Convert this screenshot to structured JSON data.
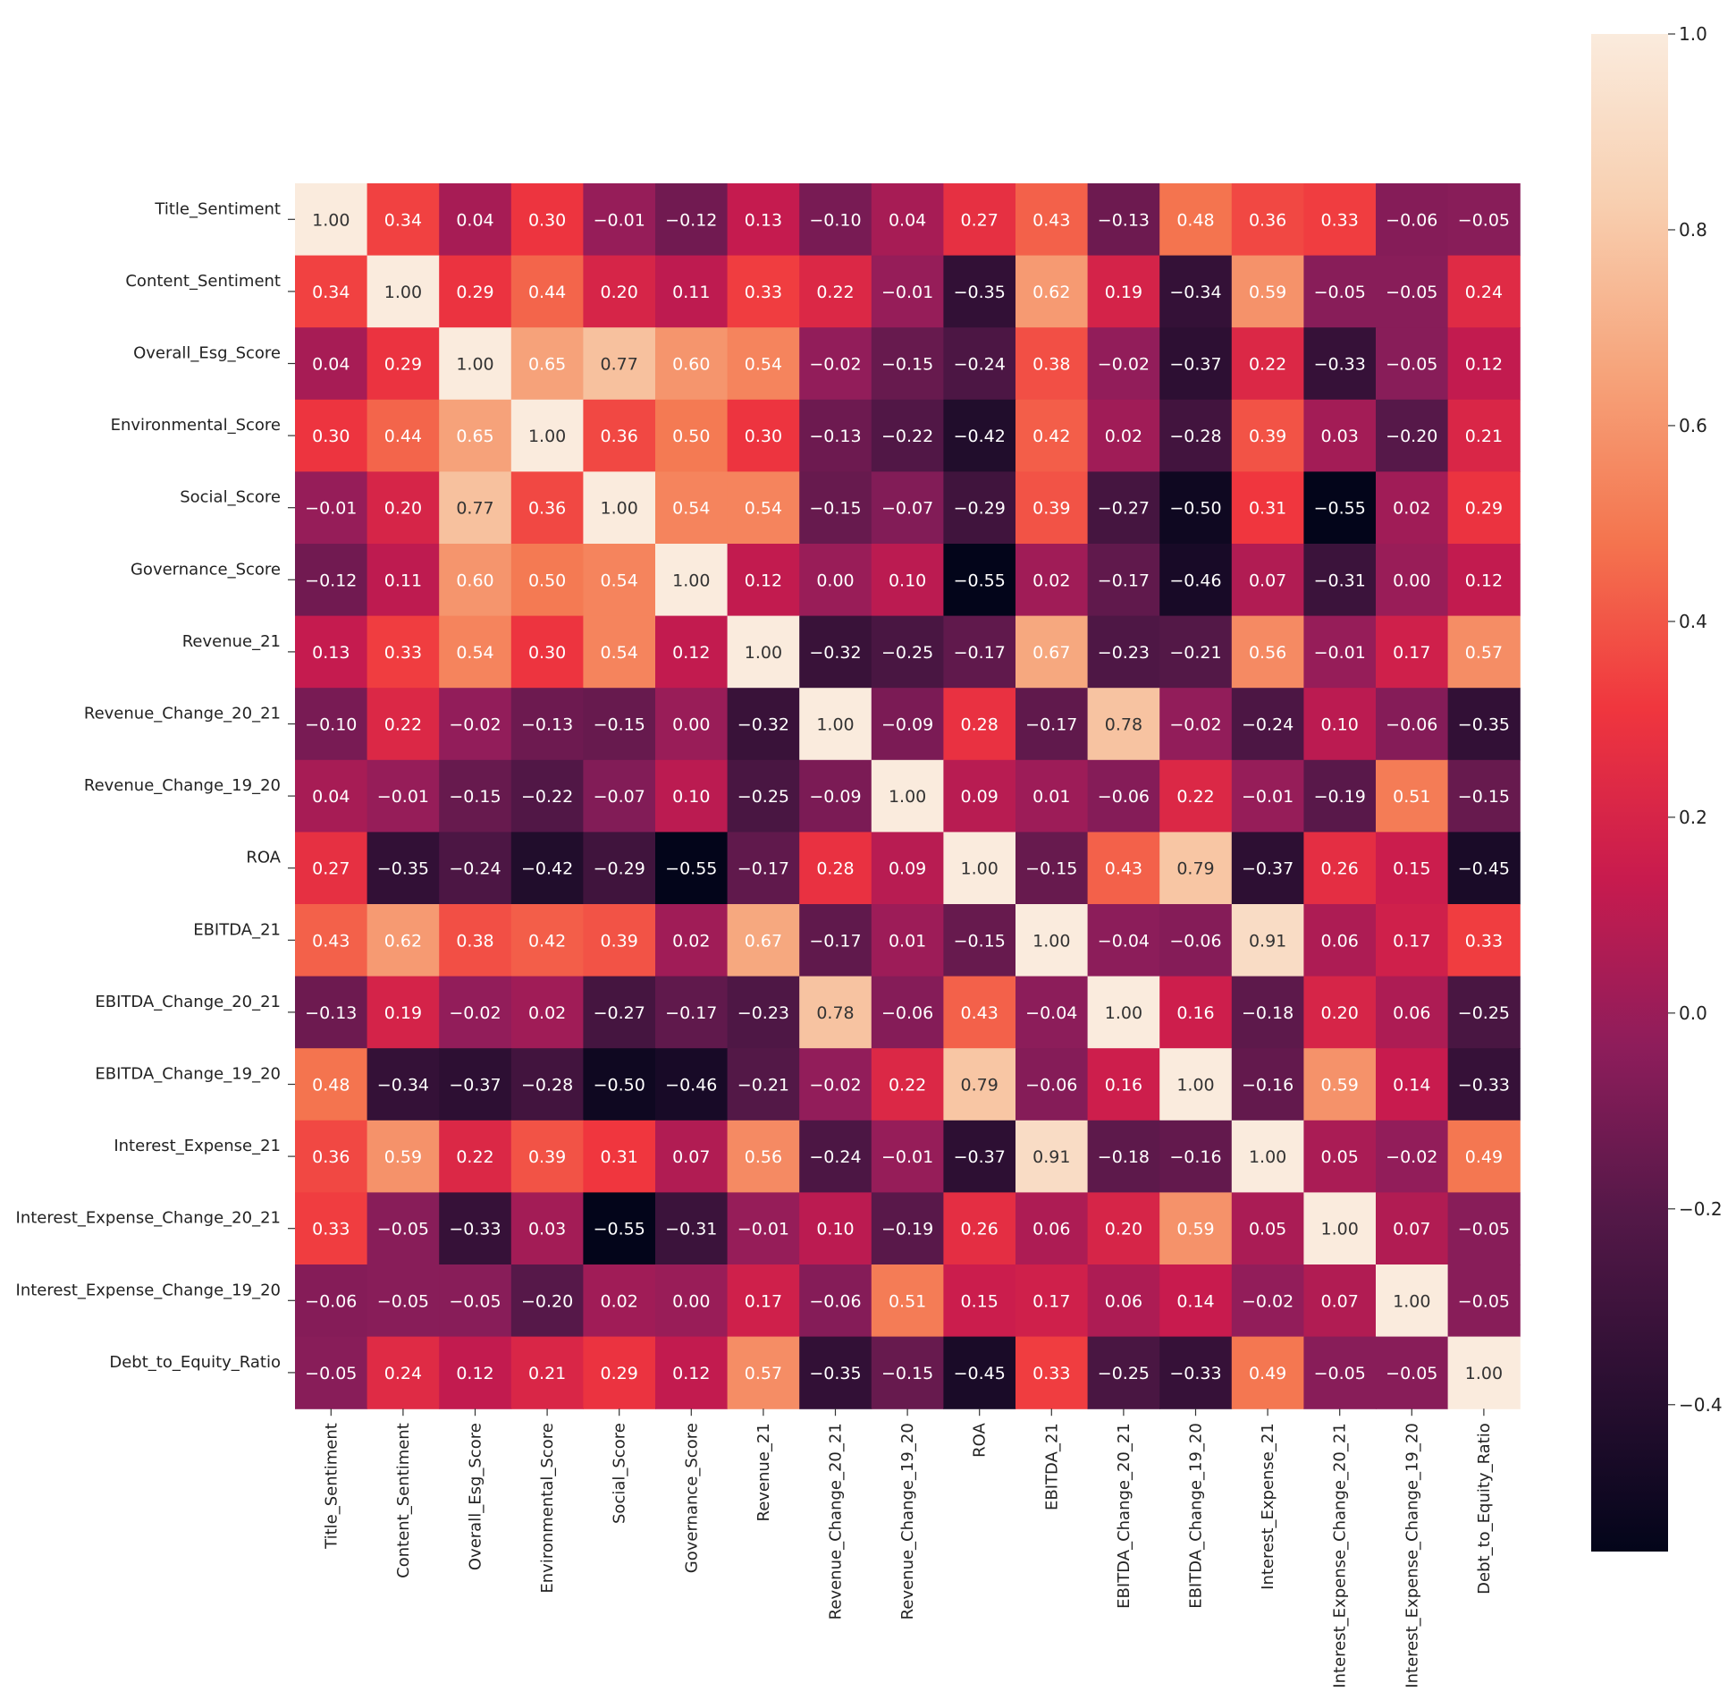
{
  "chart_data": {
    "type": "heatmap",
    "title": "",
    "variables": [
      "Title_Sentiment",
      "Content_Sentiment",
      "Overall_Esg_Score",
      "Environmental_Score",
      "Social_Score",
      "Governance_Score",
      "Revenue_21",
      "Revenue_Change_20_21",
      "Revenue_Change_19_20",
      "ROA",
      "EBITDA_21",
      "EBITDA_Change_20_21",
      "EBITDA_Change_19_20",
      "Interest_Expense_21",
      "Interest_Expense_Change_20_21",
      "Interest_Expense_Change_19_20",
      "Debt_to_Equity_Ratio"
    ],
    "values": [
      [
        1.0,
        0.34,
        0.04,
        0.3,
        -0.01,
        -0.12,
        0.13,
        -0.1,
        0.04,
        0.27,
        0.43,
        -0.13,
        0.48,
        0.36,
        0.33,
        -0.06,
        -0.05
      ],
      [
        0.34,
        1.0,
        0.29,
        0.44,
        0.2,
        0.11,
        0.33,
        0.22,
        -0.01,
        -0.35,
        0.62,
        0.19,
        -0.34,
        0.59,
        -0.05,
        -0.05,
        0.24
      ],
      [
        0.04,
        0.29,
        1.0,
        0.65,
        0.77,
        0.6,
        0.54,
        -0.02,
        -0.15,
        -0.24,
        0.38,
        -0.02,
        -0.37,
        0.22,
        -0.33,
        -0.05,
        0.12
      ],
      [
        0.3,
        0.44,
        0.65,
        1.0,
        0.36,
        0.5,
        0.3,
        -0.13,
        -0.22,
        -0.42,
        0.42,
        0.02,
        -0.28,
        0.39,
        0.03,
        -0.2,
        0.21
      ],
      [
        -0.01,
        0.2,
        0.77,
        0.36,
        1.0,
        0.54,
        0.54,
        -0.15,
        -0.07,
        -0.29,
        0.39,
        -0.27,
        -0.5,
        0.31,
        -0.55,
        0.02,
        0.29
      ],
      [
        -0.12,
        0.11,
        0.6,
        0.5,
        0.54,
        1.0,
        0.12,
        0.0,
        0.1,
        -0.55,
        0.02,
        -0.17,
        -0.46,
        0.07,
        -0.31,
        0.0,
        0.12
      ],
      [
        0.13,
        0.33,
        0.54,
        0.3,
        0.54,
        0.12,
        1.0,
        -0.32,
        -0.25,
        -0.17,
        0.67,
        -0.23,
        -0.21,
        0.56,
        -0.01,
        0.17,
        0.57
      ],
      [
        -0.1,
        0.22,
        -0.02,
        -0.13,
        -0.15,
        0.0,
        -0.32,
        1.0,
        -0.09,
        0.28,
        -0.17,
        0.78,
        -0.02,
        -0.24,
        0.1,
        -0.06,
        -0.35
      ],
      [
        0.04,
        -0.01,
        -0.15,
        -0.22,
        -0.07,
        0.1,
        -0.25,
        -0.09,
        1.0,
        0.09,
        0.01,
        -0.06,
        0.22,
        -0.01,
        -0.19,
        0.51,
        -0.15
      ],
      [
        0.27,
        -0.35,
        -0.24,
        -0.42,
        -0.29,
        -0.55,
        -0.17,
        0.28,
        0.09,
        1.0,
        -0.15,
        0.43,
        0.79,
        -0.37,
        0.26,
        0.15,
        -0.45
      ],
      [
        0.43,
        0.62,
        0.38,
        0.42,
        0.39,
        0.02,
        0.67,
        -0.17,
        0.01,
        -0.15,
        1.0,
        -0.04,
        -0.06,
        0.91,
        0.06,
        0.17,
        0.33
      ],
      [
        -0.13,
        0.19,
        -0.02,
        0.02,
        -0.27,
        -0.17,
        -0.23,
        0.78,
        -0.06,
        0.43,
        -0.04,
        1.0,
        0.16,
        -0.18,
        0.2,
        0.06,
        -0.25
      ],
      [
        0.48,
        -0.34,
        -0.37,
        -0.28,
        -0.5,
        -0.46,
        -0.21,
        -0.02,
        0.22,
        0.79,
        -0.06,
        0.16,
        1.0,
        -0.16,
        0.59,
        0.14,
        -0.33
      ],
      [
        0.36,
        0.59,
        0.22,
        0.39,
        0.31,
        0.07,
        0.56,
        -0.24,
        -0.01,
        -0.37,
        0.91,
        -0.18,
        -0.16,
        1.0,
        0.05,
        -0.02,
        0.49
      ],
      [
        0.33,
        -0.05,
        -0.33,
        0.03,
        -0.55,
        -0.31,
        -0.01,
        0.1,
        -0.19,
        0.26,
        0.06,
        0.2,
        0.59,
        0.05,
        1.0,
        0.07,
        -0.05
      ],
      [
        -0.06,
        -0.05,
        -0.05,
        -0.2,
        0.02,
        0.0,
        0.17,
        -0.06,
        0.51,
        0.15,
        0.17,
        0.06,
        0.14,
        -0.02,
        0.07,
        1.0,
        -0.05
      ],
      [
        -0.05,
        0.24,
        0.12,
        0.21,
        0.29,
        0.12,
        0.57,
        -0.35,
        -0.15,
        -0.45,
        0.33,
        -0.25,
        -0.33,
        0.49,
        -0.05,
        -0.05,
        1.0
      ]
    ],
    "colorbar": {
      "vmin": -0.55,
      "vmax": 1.0,
      "ticks": [
        -0.4,
        -0.2,
        0.0,
        0.2,
        0.4,
        0.6,
        0.8,
        1.0
      ],
      "tick_labels": [
        "−0.4",
        "−0.2",
        "0.0",
        "0.2",
        "0.4",
        "0.6",
        "0.8",
        "1.0"
      ],
      "colormap": "rocket",
      "stops": [
        "#03051a",
        "#2b0f32",
        "#541848",
        "#8e1d5b",
        "#c81b4e",
        "#f0363e",
        "#f4754f",
        "#f6a47b",
        "#f8cfb0",
        "#faebdd"
      ]
    },
    "annot_format": "0.00",
    "xlabel": "",
    "ylabel": ""
  }
}
